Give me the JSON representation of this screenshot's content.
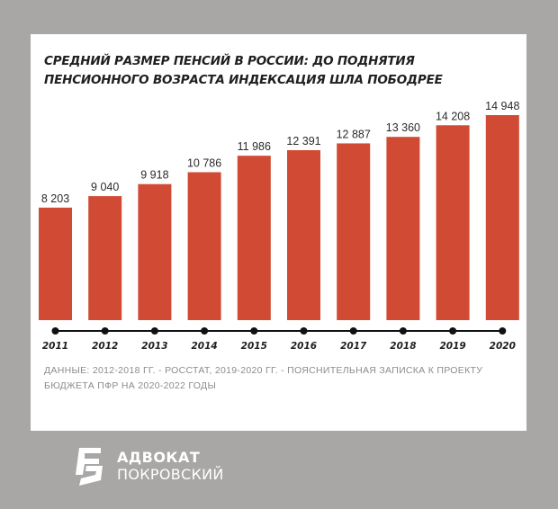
{
  "chart_data": {
    "type": "bar",
    "title": "СРЕДНИЙ РАЗМЕР ПЕНСИЙ В РОССИИ: ДО ПОДНЯТИЯ ПЕНСИОННОГО ВОЗРАСТА ИНДЕКСАЦИЯ ШЛА ПОБОДРЕЕ",
    "categories": [
      "2011",
      "2012",
      "2013",
      "2014",
      "2015",
      "2016",
      "2017",
      "2018",
      "2019",
      "2020"
    ],
    "values": [
      8203,
      9040,
      9918,
      10786,
      11986,
      12391,
      12887,
      13360,
      14208,
      14948
    ],
    "value_labels": [
      "8 203",
      "9 040",
      "9 918",
      "10 786",
      "11 986",
      "12 391",
      "12 887",
      "13 360",
      "14 208",
      "14 948"
    ],
    "xlabel": "",
    "ylabel": "",
    "ylim": [
      0,
      14948
    ],
    "grid": false,
    "bar_color": "#d14a33",
    "timeline_color": "#111111"
  },
  "source_note": "ДАННЫЕ: 2012-2018 ГГ. - РОССТАТ, 2019-2020 ГГ. - ПОЯСНИТЕЛЬНАЯ ЗАПИСКА К ПРОЕКТУ БЮДЖЕТА ПФР НА 2020-2022 ГОДЫ",
  "brand": {
    "line1": "АДВОКАТ",
    "line2": "ПОКРОВСКИЙ",
    "logo_text": "ПОКР",
    "logo_icon": "advocate-logo-icon"
  },
  "colors": {
    "background": "#a9a6a6",
    "card": "#ffffff",
    "title": "#1f1f1f",
    "source": "#8c8c8c"
  }
}
